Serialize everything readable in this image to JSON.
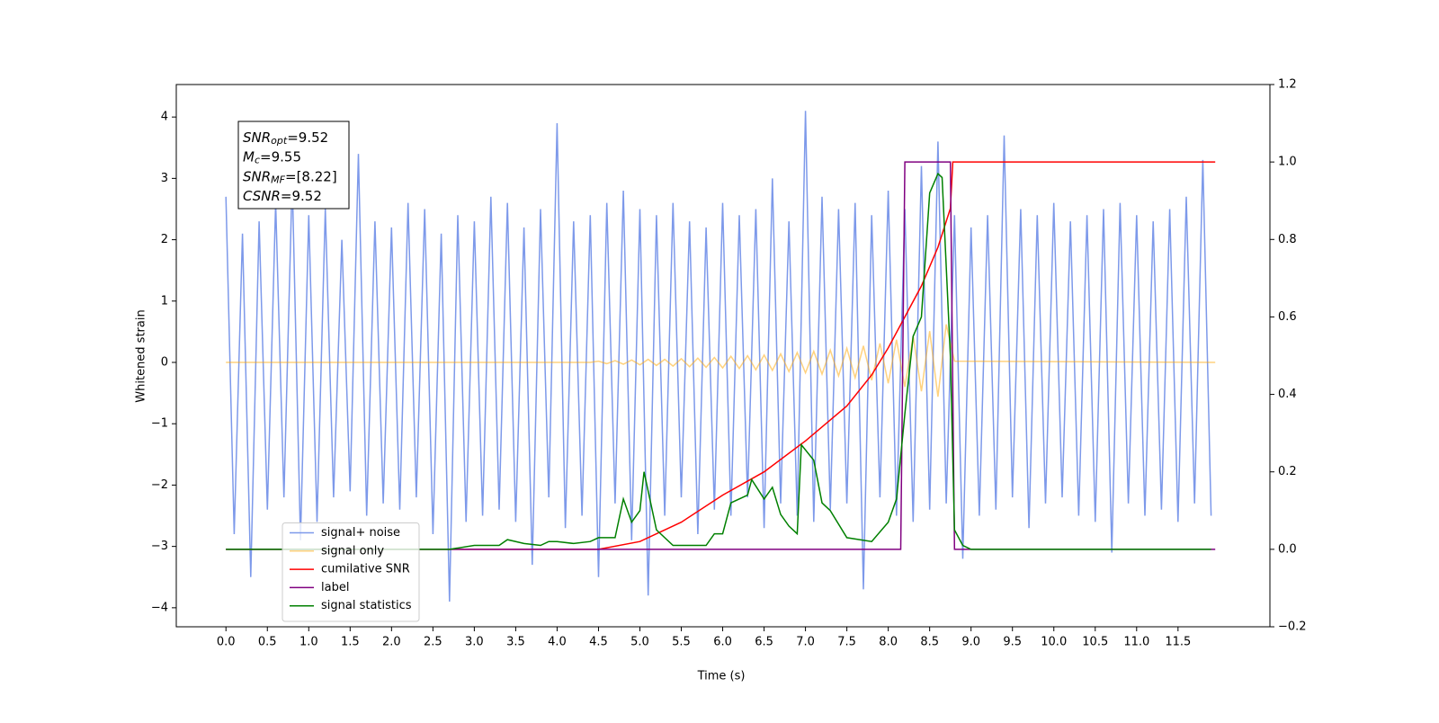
{
  "chart_data": {
    "type": "line",
    "xlabel": "Time (s)",
    "ylabel": "Whitened strain",
    "xlim": [
      -0.6,
      12.61
    ],
    "ylim": [
      -4.31,
      4.53
    ],
    "y2lim": [
      -0.2,
      1.2
    ],
    "xticks": [
      {
        "value": 0,
        "label": "0.0"
      },
      0.5,
      {
        "value": 1,
        "label": "1.0"
      },
      1.5,
      {
        "value": 2,
        "label": "2.0"
      },
      2.5,
      {
        "value": 3,
        "label": "3.0"
      },
      3.5,
      {
        "value": 4,
        "label": "4.0"
      },
      4.5,
      {
        "value": 5,
        "label": "5.0"
      },
      5.5,
      {
        "value": 6,
        "label": "6.0"
      },
      6.5,
      {
        "value": 7,
        "label": "7.0"
      },
      7.5,
      {
        "value": 8,
        "label": "8.0"
      },
      8.5,
      {
        "value": 9,
        "label": "9.0"
      },
      9.5,
      {
        "value": 10,
        "label": "10.0"
      },
      10.5,
      {
        "value": 11,
        "label": "11.0"
      },
      11.5
    ],
    "yticks": [
      {
        "value": -4,
        "label": "−4"
      },
      {
        "value": -3,
        "label": "−3"
      },
      {
        "value": -2,
        "label": "−2"
      },
      {
        "value": -1,
        "label": "−1"
      },
      0,
      1,
      2,
      3,
      4
    ],
    "y2ticks": [
      {
        "value": -0.2,
        "label": "−0.2"
      },
      {
        "value": 0,
        "label": "0.0"
      },
      0.2,
      0.4,
      0.6,
      0.8,
      {
        "value": 1,
        "label": "1.0"
      },
      1.2
    ],
    "legend": "lower left",
    "annotations": [
      {
        "main": "SNR",
        "sub": "opt",
        "text": "=9.52"
      },
      {
        "main": "M",
        "sub": "c",
        "text": "=9.55"
      },
      {
        "main": "SNR",
        "sub": "MF",
        "text": "=[8.22]"
      },
      {
        "main": "CSNR",
        "text": "=9.52"
      }
    ],
    "series": [
      {
        "name": "signal+ noise",
        "color": "#6f8ee8",
        "opacity": 0.9,
        "x": [
          0,
          0.1,
          0.2,
          0.3,
          0.4,
          0.5,
          0.6,
          0.7,
          0.8,
          0.9,
          1,
          1.1,
          1.2,
          1.3,
          1.4,
          1.5,
          1.6,
          1.7,
          1.8,
          1.9,
          2,
          2.1,
          2.2,
          2.3,
          2.4,
          2.5,
          2.6,
          2.7,
          2.8,
          2.9,
          3,
          3.1,
          3.2,
          3.3,
          3.4,
          3.5,
          3.6,
          3.7,
          3.8,
          3.9,
          4,
          4.1,
          4.2,
          4.3,
          4.4,
          4.5,
          4.6,
          4.7,
          4.8,
          4.9,
          5,
          5.1,
          5.2,
          5.3,
          5.4,
          5.5,
          5.6,
          5.7,
          5.8,
          5.9,
          6,
          6.1,
          6.2,
          6.3,
          6.4,
          6.5,
          6.6,
          6.7,
          6.8,
          6.9,
          7,
          7.1,
          7.2,
          7.3,
          7.4,
          7.5,
          7.6,
          7.7,
          7.8,
          7.9,
          8,
          8.1,
          8.2,
          8.3,
          8.4,
          8.5,
          8.6,
          8.7,
          8.8,
          8.9,
          9,
          9.1,
          9.2,
          9.3,
          9.4,
          9.5,
          9.6,
          9.7,
          9.8,
          9.9,
          10,
          10.1,
          10.2,
          10.3,
          10.4,
          10.5,
          10.6,
          10.7,
          10.8,
          10.9,
          11,
          11.1,
          11.2,
          11.3,
          11.4,
          11.5,
          11.6,
          11.7,
          11.8,
          11.9
        ],
        "values": [
          2.7,
          -2.8,
          2.1,
          -3.5,
          2.3,
          -2.4,
          2.6,
          -2.2,
          3.0,
          -2.9,
          2.4,
          -2.6,
          2.5,
          -2.2,
          2.0,
          -2.1,
          3.4,
          -2.5,
          2.3,
          -2.3,
          2.2,
          -2.4,
          2.6,
          -2.2,
          2.5,
          -2.8,
          2.1,
          -3.9,
          2.4,
          -2.6,
          2.3,
          -2.5,
          2.7,
          -2.4,
          2.6,
          -2.6,
          2.2,
          -3.3,
          2.5,
          -2.2,
          3.9,
          -2.7,
          2.3,
          -2.5,
          2.4,
          -3.5,
          2.6,
          -2.3,
          2.8,
          -2.9,
          2.5,
          -3.8,
          2.4,
          -2.5,
          2.6,
          -2.2,
          2.3,
          -2.8,
          2.2,
          -2.4,
          2.6,
          -2.5,
          2.4,
          -2.2,
          2.5,
          -2.7,
          3.0,
          -2.3,
          2.3,
          -2.5,
          4.1,
          -2.6,
          2.7,
          -2.4,
          2.5,
          -2.3,
          2.6,
          -3.7,
          2.4,
          -2.2,
          2.8,
          -2.5,
          2.5,
          -2.6,
          3.2,
          -2.4,
          3.6,
          -2.3,
          2.4,
          -3.2,
          2.2,
          -2.5,
          2.4,
          -2.4,
          3.7,
          -2.2,
          2.5,
          -2.7,
          2.4,
          -2.3,
          2.6,
          -2.2,
          2.3,
          -2.5,
          2.4,
          -2.6,
          2.5,
          -3.1,
          2.6,
          -2.3,
          2.4,
          -2.5,
          2.3,
          -2.4,
          2.5,
          -2.6,
          2.7,
          -2.3,
          3.3,
          -2.5
        ]
      },
      {
        "name": "signal only",
        "color": "#ffa500",
        "opacity": 0.5,
        "x": [
          0,
          4.4,
          4.5,
          4.6,
          4.7,
          4.8,
          4.9,
          5,
          5.1,
          5.2,
          5.3,
          5.4,
          5.5,
          5.6,
          5.7,
          5.8,
          5.9,
          6,
          6.1,
          6.2,
          6.3,
          6.4,
          6.5,
          6.6,
          6.7,
          6.8,
          6.9,
          7,
          7.1,
          7.2,
          7.3,
          7.4,
          7.5,
          7.6,
          7.7,
          7.8,
          7.9,
          8,
          8.1,
          8.2,
          8.3,
          8.4,
          8.5,
          8.6,
          8.7,
          8.8,
          11.95
        ],
        "values": [
          0,
          0,
          0.02,
          -0.02,
          0.03,
          -0.03,
          0.04,
          -0.04,
          0.05,
          -0.05,
          0.05,
          -0.06,
          0.06,
          -0.07,
          0.07,
          -0.08,
          0.08,
          -0.09,
          0.1,
          -0.1,
          0.11,
          -0.12,
          0.12,
          -0.13,
          0.14,
          -0.15,
          0.16,
          -0.17,
          0.18,
          -0.19,
          0.2,
          -0.22,
          0.23,
          -0.25,
          0.27,
          -0.29,
          0.31,
          -0.34,
          0.37,
          -0.4,
          0.43,
          -0.47,
          0.51,
          -0.56,
          0.62,
          0.02,
          0
        ]
      },
      {
        "name": "cumilative SNR",
        "color": "#ff0000",
        "axis": "y2",
        "x": [
          0,
          4.5,
          5,
          5.5,
          6,
          6.5,
          7,
          7.5,
          7.8,
          8,
          8.2,
          8.4,
          8.6,
          8.75,
          8.78,
          11.95
        ],
        "values": [
          0,
          0,
          0.02,
          0.07,
          0.14,
          0.2,
          0.28,
          0.37,
          0.45,
          0.52,
          0.6,
          0.68,
          0.78,
          0.88,
          1,
          1
        ]
      },
      {
        "name": "label",
        "color": "#800080",
        "axis": "y2",
        "x": [
          0,
          8.15,
          8.2,
          8.75,
          8.8,
          11.95
        ],
        "values": [
          0,
          0,
          1,
          1,
          0,
          0
        ]
      },
      {
        "name": "signal statistics",
        "color": "#008000",
        "axis": "y2",
        "x": [
          0,
          2.7,
          3,
          3.3,
          3.4,
          3.6,
          3.8,
          3.9,
          4,
          4.2,
          4.4,
          4.5,
          4.7,
          4.8,
          4.9,
          5,
          5.05,
          5.2,
          5.4,
          5.8,
          5.9,
          6,
          6.1,
          6.3,
          6.35,
          6.5,
          6.6,
          6.7,
          6.8,
          6.9,
          6.95,
          7.1,
          7.2,
          7.3,
          7.5,
          7.8,
          8,
          8.1,
          8.2,
          8.3,
          8.4,
          8.5,
          8.6,
          8.65,
          8.75,
          8.8,
          8.9,
          9,
          11.9
        ],
        "values": [
          0,
          0,
          0.01,
          0.01,
          0.025,
          0.015,
          0.01,
          0.02,
          0.02,
          0.015,
          0.02,
          0.03,
          0.03,
          0.13,
          0.07,
          0.1,
          0.2,
          0.05,
          0.01,
          0.01,
          0.04,
          0.04,
          0.12,
          0.14,
          0.18,
          0.13,
          0.16,
          0.09,
          0.06,
          0.04,
          0.27,
          0.23,
          0.12,
          0.1,
          0.03,
          0.02,
          0.07,
          0.13,
          0.35,
          0.55,
          0.6,
          0.92,
          0.97,
          0.96,
          0.5,
          0.05,
          0.01,
          0,
          0
        ]
      }
    ]
  }
}
